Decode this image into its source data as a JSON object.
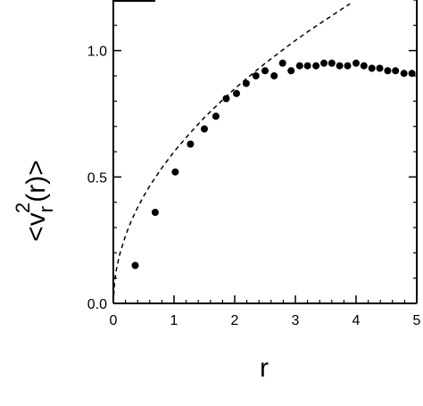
{
  "chart_data": {
    "type": "scatter",
    "title": "",
    "xlabel": "r",
    "ylabel": "<v_r^2(r)>",
    "ylabel_parts": {
      "open": "<",
      "v": "v",
      "sub": "r",
      "sup": "2",
      "arg": "(r)",
      "close": ">"
    },
    "xlim": [
      0,
      5
    ],
    "ylim": [
      0,
      1.2
    ],
    "xticks": [
      0,
      1,
      2,
      3,
      4,
      5
    ],
    "xtick_labels": [
      "0",
      "1",
      "2",
      "3",
      "4",
      "5"
    ],
    "yticks": [
      0.0,
      0.5,
      1.0
    ],
    "ytick_labels": [
      "0.0",
      "0.5",
      "1.0"
    ],
    "grid": false,
    "legend": "none",
    "series": [
      {
        "kind": "points",
        "marker": "filled-circle",
        "color": "#000000",
        "x": [
          0.36,
          0.69,
          1.02,
          1.27,
          1.5,
          1.69,
          1.86,
          2.03,
          2.19,
          2.35,
          2.5,
          2.65,
          2.79,
          2.93,
          3.07,
          3.2,
          3.34,
          3.47,
          3.6,
          3.73,
          3.86,
          4.0,
          4.13,
          4.26,
          4.39,
          4.52,
          4.65,
          4.79,
          4.92
        ],
        "y": [
          0.15,
          0.36,
          0.52,
          0.63,
          0.69,
          0.74,
          0.81,
          0.83,
          0.87,
          0.9,
          0.92,
          0.9,
          0.95,
          0.92,
          0.94,
          0.94,
          0.94,
          0.95,
          0.95,
          0.94,
          0.94,
          0.95,
          0.94,
          0.93,
          0.93,
          0.92,
          0.92,
          0.91,
          0.91
        ]
      },
      {
        "kind": "curve",
        "style": "dashed",
        "color": "#000000",
        "x": [
          0.0,
          0.02,
          0.05,
          0.1,
          0.2,
          0.3,
          0.4,
          0.5,
          0.6,
          0.8,
          1.0,
          1.25,
          1.5,
          1.75,
          2.0,
          2.25,
          2.5,
          2.75,
          3.0,
          3.25,
          3.5,
          3.75,
          3.9
        ],
        "y": [
          0.0,
          0.085,
          0.134,
          0.19,
          0.268,
          0.329,
          0.379,
          0.424,
          0.465,
          0.536,
          0.6,
          0.67,
          0.735,
          0.793,
          0.849,
          0.9,
          0.949,
          0.995,
          1.04,
          1.082,
          1.122,
          1.162,
          1.185
        ]
      }
    ]
  }
}
